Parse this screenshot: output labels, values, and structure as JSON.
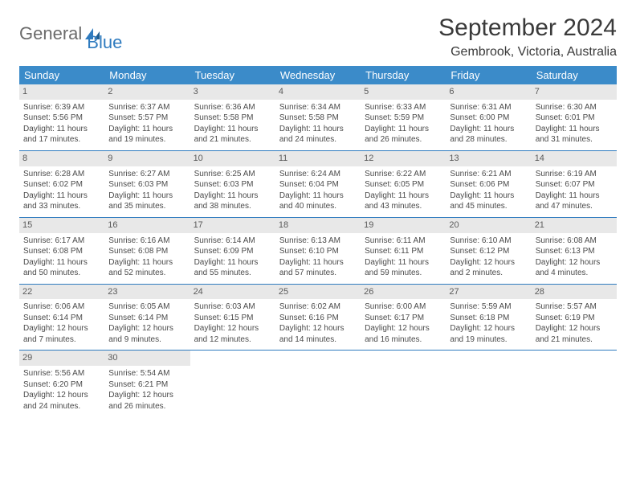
{
  "logo": {
    "text1": "General",
    "text2": "Blue"
  },
  "title": "September 2024",
  "location": "Gembrook, Victoria, Australia",
  "colors": {
    "header_bg": "#3b8bc9",
    "header_text": "#ffffff",
    "daynum_bg": "#e8e8e8",
    "row_divider": "#2f7bbf",
    "logo_blue": "#2f7bbf",
    "logo_gray": "#6b6b6b",
    "body_text": "#4a4a4a"
  },
  "weekdays": [
    "Sunday",
    "Monday",
    "Tuesday",
    "Wednesday",
    "Thursday",
    "Friday",
    "Saturday"
  ],
  "weeks": [
    [
      {
        "day": "1",
        "sunrise": "Sunrise: 6:39 AM",
        "sunset": "Sunset: 5:56 PM",
        "daylight": "Daylight: 11 hours and 17 minutes."
      },
      {
        "day": "2",
        "sunrise": "Sunrise: 6:37 AM",
        "sunset": "Sunset: 5:57 PM",
        "daylight": "Daylight: 11 hours and 19 minutes."
      },
      {
        "day": "3",
        "sunrise": "Sunrise: 6:36 AM",
        "sunset": "Sunset: 5:58 PM",
        "daylight": "Daylight: 11 hours and 21 minutes."
      },
      {
        "day": "4",
        "sunrise": "Sunrise: 6:34 AM",
        "sunset": "Sunset: 5:58 PM",
        "daylight": "Daylight: 11 hours and 24 minutes."
      },
      {
        "day": "5",
        "sunrise": "Sunrise: 6:33 AM",
        "sunset": "Sunset: 5:59 PM",
        "daylight": "Daylight: 11 hours and 26 minutes."
      },
      {
        "day": "6",
        "sunrise": "Sunrise: 6:31 AM",
        "sunset": "Sunset: 6:00 PM",
        "daylight": "Daylight: 11 hours and 28 minutes."
      },
      {
        "day": "7",
        "sunrise": "Sunrise: 6:30 AM",
        "sunset": "Sunset: 6:01 PM",
        "daylight": "Daylight: 11 hours and 31 minutes."
      }
    ],
    [
      {
        "day": "8",
        "sunrise": "Sunrise: 6:28 AM",
        "sunset": "Sunset: 6:02 PM",
        "daylight": "Daylight: 11 hours and 33 minutes."
      },
      {
        "day": "9",
        "sunrise": "Sunrise: 6:27 AM",
        "sunset": "Sunset: 6:03 PM",
        "daylight": "Daylight: 11 hours and 35 minutes."
      },
      {
        "day": "10",
        "sunrise": "Sunrise: 6:25 AM",
        "sunset": "Sunset: 6:03 PM",
        "daylight": "Daylight: 11 hours and 38 minutes."
      },
      {
        "day": "11",
        "sunrise": "Sunrise: 6:24 AM",
        "sunset": "Sunset: 6:04 PM",
        "daylight": "Daylight: 11 hours and 40 minutes."
      },
      {
        "day": "12",
        "sunrise": "Sunrise: 6:22 AM",
        "sunset": "Sunset: 6:05 PM",
        "daylight": "Daylight: 11 hours and 43 minutes."
      },
      {
        "day": "13",
        "sunrise": "Sunrise: 6:21 AM",
        "sunset": "Sunset: 6:06 PM",
        "daylight": "Daylight: 11 hours and 45 minutes."
      },
      {
        "day": "14",
        "sunrise": "Sunrise: 6:19 AM",
        "sunset": "Sunset: 6:07 PM",
        "daylight": "Daylight: 11 hours and 47 minutes."
      }
    ],
    [
      {
        "day": "15",
        "sunrise": "Sunrise: 6:17 AM",
        "sunset": "Sunset: 6:08 PM",
        "daylight": "Daylight: 11 hours and 50 minutes."
      },
      {
        "day": "16",
        "sunrise": "Sunrise: 6:16 AM",
        "sunset": "Sunset: 6:08 PM",
        "daylight": "Daylight: 11 hours and 52 minutes."
      },
      {
        "day": "17",
        "sunrise": "Sunrise: 6:14 AM",
        "sunset": "Sunset: 6:09 PM",
        "daylight": "Daylight: 11 hours and 55 minutes."
      },
      {
        "day": "18",
        "sunrise": "Sunrise: 6:13 AM",
        "sunset": "Sunset: 6:10 PM",
        "daylight": "Daylight: 11 hours and 57 minutes."
      },
      {
        "day": "19",
        "sunrise": "Sunrise: 6:11 AM",
        "sunset": "Sunset: 6:11 PM",
        "daylight": "Daylight: 11 hours and 59 minutes."
      },
      {
        "day": "20",
        "sunrise": "Sunrise: 6:10 AM",
        "sunset": "Sunset: 6:12 PM",
        "daylight": "Daylight: 12 hours and 2 minutes."
      },
      {
        "day": "21",
        "sunrise": "Sunrise: 6:08 AM",
        "sunset": "Sunset: 6:13 PM",
        "daylight": "Daylight: 12 hours and 4 minutes."
      }
    ],
    [
      {
        "day": "22",
        "sunrise": "Sunrise: 6:06 AM",
        "sunset": "Sunset: 6:14 PM",
        "daylight": "Daylight: 12 hours and 7 minutes."
      },
      {
        "day": "23",
        "sunrise": "Sunrise: 6:05 AM",
        "sunset": "Sunset: 6:14 PM",
        "daylight": "Daylight: 12 hours and 9 minutes."
      },
      {
        "day": "24",
        "sunrise": "Sunrise: 6:03 AM",
        "sunset": "Sunset: 6:15 PM",
        "daylight": "Daylight: 12 hours and 12 minutes."
      },
      {
        "day": "25",
        "sunrise": "Sunrise: 6:02 AM",
        "sunset": "Sunset: 6:16 PM",
        "daylight": "Daylight: 12 hours and 14 minutes."
      },
      {
        "day": "26",
        "sunrise": "Sunrise: 6:00 AM",
        "sunset": "Sunset: 6:17 PM",
        "daylight": "Daylight: 12 hours and 16 minutes."
      },
      {
        "day": "27",
        "sunrise": "Sunrise: 5:59 AM",
        "sunset": "Sunset: 6:18 PM",
        "daylight": "Daylight: 12 hours and 19 minutes."
      },
      {
        "day": "28",
        "sunrise": "Sunrise: 5:57 AM",
        "sunset": "Sunset: 6:19 PM",
        "daylight": "Daylight: 12 hours and 21 minutes."
      }
    ],
    [
      {
        "day": "29",
        "sunrise": "Sunrise: 5:56 AM",
        "sunset": "Sunset: 6:20 PM",
        "daylight": "Daylight: 12 hours and 24 minutes."
      },
      {
        "day": "30",
        "sunrise": "Sunrise: 5:54 AM",
        "sunset": "Sunset: 6:21 PM",
        "daylight": "Daylight: 12 hours and 26 minutes."
      },
      {
        "day": "",
        "sunrise": "",
        "sunset": "",
        "daylight": ""
      },
      {
        "day": "",
        "sunrise": "",
        "sunset": "",
        "daylight": ""
      },
      {
        "day": "",
        "sunrise": "",
        "sunset": "",
        "daylight": ""
      },
      {
        "day": "",
        "sunrise": "",
        "sunset": "",
        "daylight": ""
      },
      {
        "day": "",
        "sunrise": "",
        "sunset": "",
        "daylight": ""
      }
    ]
  ]
}
